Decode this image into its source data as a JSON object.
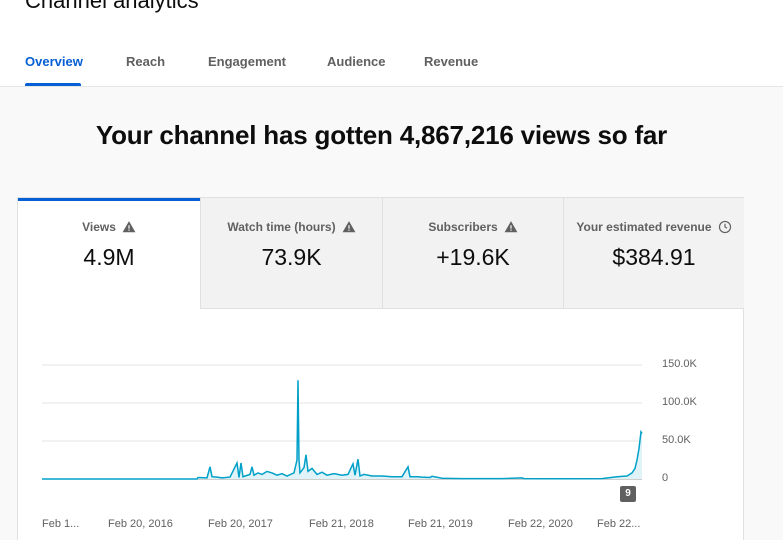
{
  "page": {
    "title": "Channel analytics"
  },
  "tabs": [
    {
      "label": "Overview",
      "active": true
    },
    {
      "label": "Reach",
      "active": false
    },
    {
      "label": "Engagement",
      "active": false
    },
    {
      "label": "Audience",
      "active": false
    },
    {
      "label": "Revenue",
      "active": false
    }
  ],
  "headline": "Your channel has gotten 4,867,216 views so far",
  "metrics": [
    {
      "label": "Views",
      "value": "4.9M",
      "icon": "warning-icon",
      "active": true
    },
    {
      "label": "Watch time (hours)",
      "value": "73.9K",
      "icon": "warning-icon",
      "active": false
    },
    {
      "label": "Subscribers",
      "value": "+19.6K",
      "icon": "warning-icon",
      "active": false
    },
    {
      "label": "Your estimated revenue",
      "value": "$384.91",
      "icon": "clock-icon",
      "active": false
    }
  ],
  "badge": "9",
  "colors": {
    "accent": "#065fd4",
    "line": "#00a0c8",
    "fill": "#dff3f8",
    "grid": "#e5e5e5"
  },
  "chart_data": {
    "type": "line",
    "series": [
      {
        "values": []
      }
    ],
    "x_tick_labels": [
      "Feb 1...",
      "Feb 20, 2016",
      "Feb 20, 2017",
      "Feb 21, 2018",
      "Feb 21, 2019",
      "Feb 22, 2020",
      "Feb 22..."
    ],
    "y_tick_labels": [
      "150.0K",
      "100.0K",
      "50.0K",
      "0"
    ],
    "ylim": [
      0,
      150000
    ],
    "grid": true,
    "points": [
      [
        0,
        0
      ],
      [
        155,
        0
      ],
      [
        156,
        2000
      ],
      [
        165,
        1500
      ],
      [
        168,
        16000
      ],
      [
        170,
        3000
      ],
      [
        175,
        2500
      ],
      [
        180,
        1500
      ],
      [
        188,
        2500
      ],
      [
        195,
        21000
      ],
      [
        197,
        2000
      ],
      [
        199,
        21000
      ],
      [
        201,
        3000
      ],
      [
        208,
        6000
      ],
      [
        210,
        16000
      ],
      [
        212,
        5000
      ],
      [
        216,
        8000
      ],
      [
        220,
        6000
      ],
      [
        225,
        10000
      ],
      [
        230,
        8000
      ],
      [
        235,
        5000
      ],
      [
        240,
        7000
      ],
      [
        245,
        4000
      ],
      [
        252,
        8000
      ],
      [
        255,
        25000
      ],
      [
        256,
        130000
      ],
      [
        257,
        25000
      ],
      [
        258,
        8000
      ],
      [
        262,
        15000
      ],
      [
        264,
        32000
      ],
      [
        266,
        10000
      ],
      [
        270,
        14000
      ],
      [
        275,
        6000
      ],
      [
        280,
        9000
      ],
      [
        285,
        5000
      ],
      [
        292,
        7000
      ],
      [
        300,
        5000
      ],
      [
        306,
        6000
      ],
      [
        311,
        20000
      ],
      [
        313,
        5000
      ],
      [
        316,
        26000
      ],
      [
        318,
        4000
      ],
      [
        322,
        6000
      ],
      [
        330,
        4000
      ],
      [
        340,
        4000
      ],
      [
        350,
        3000
      ],
      [
        360,
        3000
      ],
      [
        366,
        16000
      ],
      [
        368,
        3000
      ],
      [
        375,
        3000
      ],
      [
        380,
        2500
      ],
      [
        388,
        2000
      ],
      [
        390,
        3500
      ],
      [
        400,
        1000
      ],
      [
        420,
        500
      ],
      [
        460,
        500
      ],
      [
        480,
        1500
      ],
      [
        482,
        500
      ],
      [
        520,
        400
      ],
      [
        560,
        500
      ],
      [
        575,
        3000
      ],
      [
        585,
        4000
      ],
      [
        590,
        8000
      ],
      [
        593,
        14000
      ],
      [
        595,
        25000
      ],
      [
        597,
        40000
      ],
      [
        599,
        62000
      ],
      [
        600,
        60000
      ]
    ]
  }
}
